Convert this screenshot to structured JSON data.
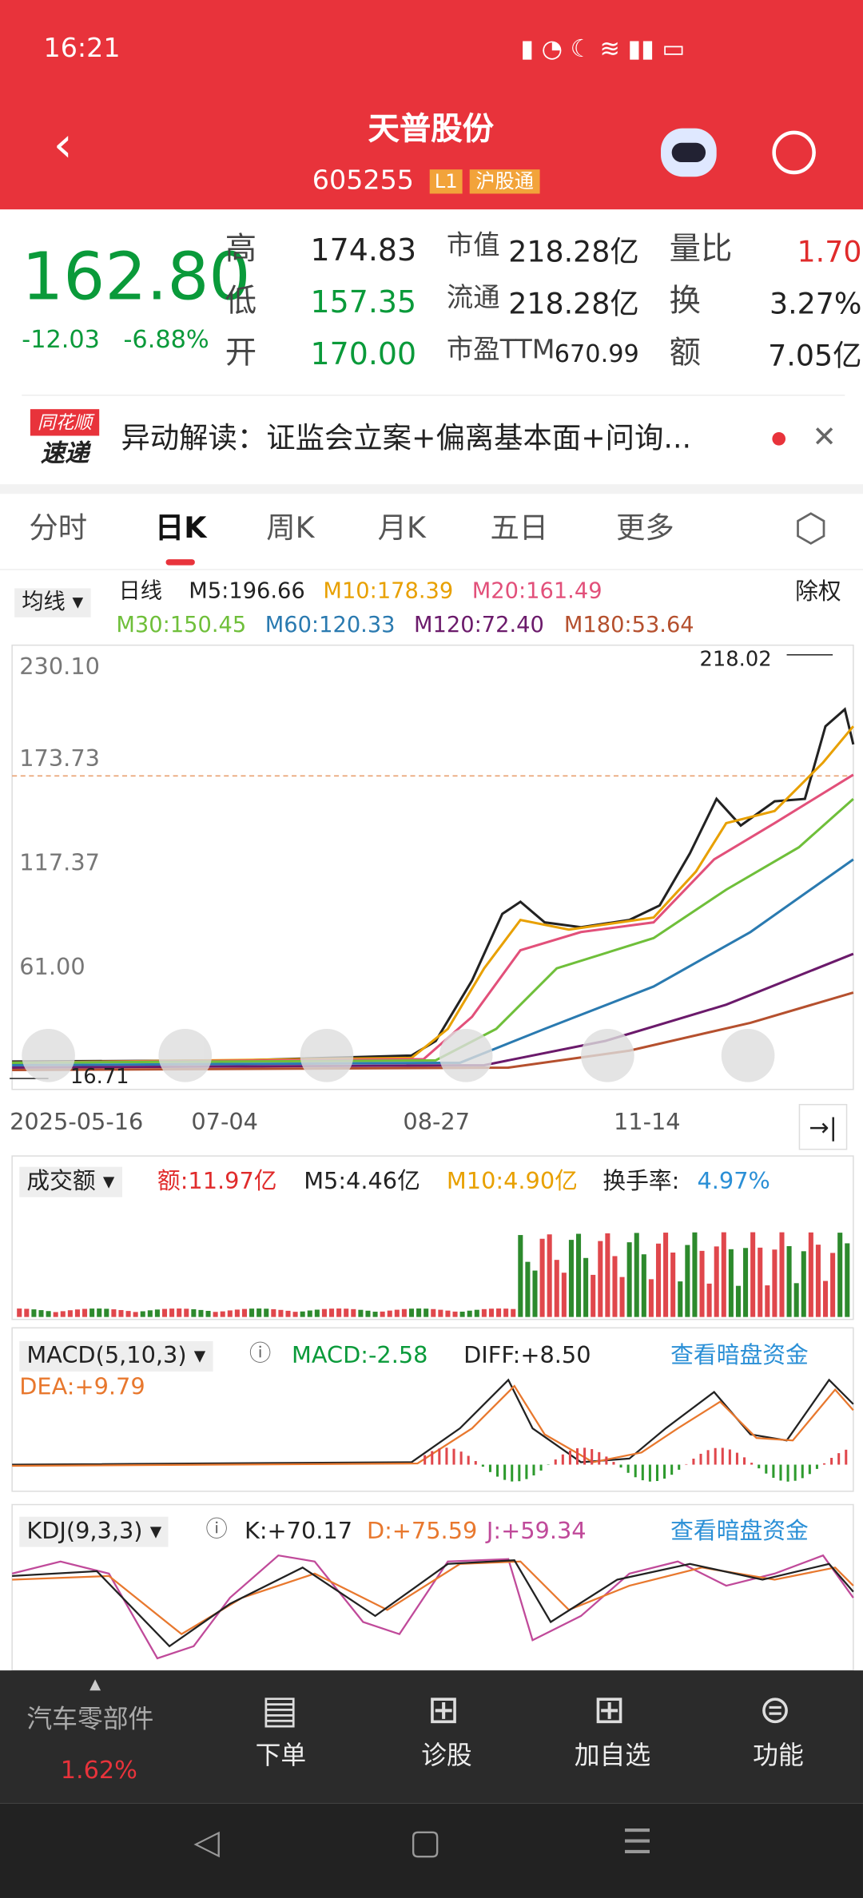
{
  "status": {
    "time": "16:21"
  },
  "header": {
    "title": "天普股份",
    "code": "605255",
    "badges": [
      "L1",
      "沪股通"
    ]
  },
  "quote": {
    "price": "162.80",
    "change": "-12.03",
    "change_pct": "-6.88%",
    "stats": [
      [
        {
          "label": "高",
          "value": "174.83"
        },
        {
          "label": "市值",
          "value": "218.28亿"
        },
        {
          "label": "量比",
          "value": "1.70"
        }
      ],
      [
        {
          "label": "低",
          "value": "157.35"
        },
        {
          "label": "流通",
          "value": "218.28亿"
        },
        {
          "label": "换",
          "value": "3.27%"
        }
      ],
      [
        {
          "label": "开",
          "value": "170.00"
        },
        {
          "label": "市盈TTM",
          "value": "670.99"
        },
        {
          "label": "额",
          "value": "7.05亿"
        }
      ]
    ]
  },
  "news": {
    "badge": [
      "同花顺",
      "速递"
    ],
    "text": "异动解读：证监会立案+偏离基本面+问询..."
  },
  "tabs": [
    "分时",
    "日K",
    "周K",
    "月K",
    "五日",
    "更多"
  ],
  "ma": {
    "selector": "均线",
    "period": "日线",
    "lines": [
      "M5:196.66",
      "M10:178.39",
      "M20:161.49",
      "M30:150.45",
      "M60:120.33",
      "M120:72.40",
      "M180:53.64"
    ],
    "adjust": "除权"
  },
  "kline": {
    "price_labels": [
      "230.10",
      "173.73",
      "117.37",
      "61.00"
    ],
    "high_mark": "218.02",
    "low_mark": "16.71",
    "dates": [
      "2025-05-16",
      "07-04",
      "08-27",
      "11-14"
    ]
  },
  "volume": {
    "selector": "成交额",
    "amount": "额:11.97亿",
    "m5": "M5:4.46亿",
    "m10": "M10:4.90亿",
    "turnover_label": "换手率:",
    "turnover": "4.97%"
  },
  "macd": {
    "selector": "MACD(5,10,3)",
    "macd": "MACD:-2.58",
    "diff": "DIFF:+8.50",
    "dea": "DEA:+9.79",
    "link": "查看暗盘资金"
  },
  "kdj": {
    "selector": "KDJ(9,3,3)",
    "k": "K:+70.17",
    "d": "D:+75.59",
    "j": "J:+59.34",
    "link": "查看暗盘资金"
  },
  "bottom": {
    "sector": "汽车零部件",
    "sector_change": "1.62%",
    "buttons": [
      "下单",
      "诊股",
      "加自选",
      "功能"
    ]
  }
}
